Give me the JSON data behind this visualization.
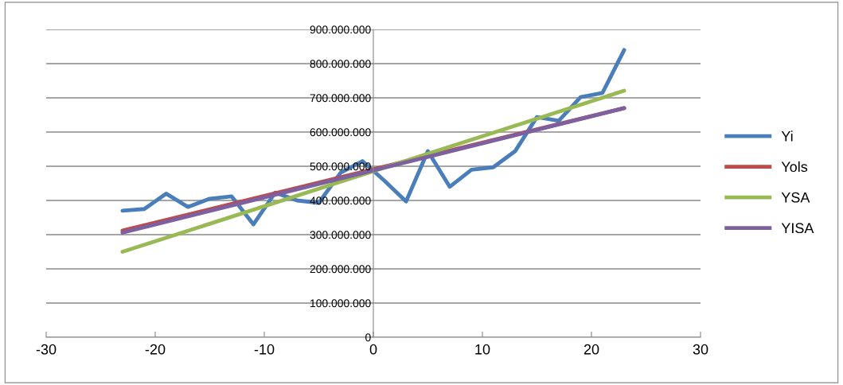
{
  "chart_data": {
    "type": "line",
    "x": [
      -23,
      -21,
      -19,
      -17,
      -15,
      -13,
      -11,
      -9,
      -7,
      -5,
      -3,
      -1,
      1,
      3,
      5,
      7,
      9,
      11,
      13,
      15,
      17,
      19,
      21,
      23
    ],
    "series": [
      {
        "name": "Yi",
        "color": "#4a7ebb",
        "values": [
          370000000,
          375000000,
          420000000,
          381000000,
          405000000,
          412000000,
          330000000,
          423000000,
          400000000,
          393000000,
          481000000,
          515000000,
          458000000,
          397000000,
          544000000,
          440000000,
          490000000,
          497000000,
          544000000,
          644000000,
          633000000,
          702000000,
          714000000,
          840000000
        ]
      },
      {
        "name": "Yols",
        "color": "#be4b48",
        "values": [
          312000000,
          null,
          null,
          null,
          null,
          null,
          null,
          null,
          null,
          null,
          null,
          null,
          null,
          null,
          null,
          null,
          null,
          null,
          null,
          null,
          null,
          null,
          null,
          670000000
        ]
      },
      {
        "name": "YSA",
        "color": "#98b954",
        "values": [
          250000000,
          null,
          null,
          null,
          null,
          null,
          null,
          null,
          null,
          null,
          null,
          null,
          null,
          null,
          null,
          null,
          null,
          null,
          null,
          null,
          null,
          null,
          null,
          721000000
        ]
      },
      {
        "name": "YISA",
        "color": "#7d60a0",
        "values": [
          306000000,
          null,
          null,
          null,
          null,
          null,
          null,
          null,
          null,
          null,
          null,
          null,
          null,
          null,
          null,
          null,
          null,
          null,
          null,
          null,
          null,
          null,
          null,
          670000000
        ]
      }
    ],
    "xlim": [
      -30,
      30
    ],
    "xticks": [
      -30,
      -20,
      -10,
      0,
      10,
      20,
      30
    ],
    "ylim": [
      0,
      900000000
    ],
    "yticks": [
      {
        "value": 0,
        "label": "0"
      },
      {
        "value": 100000000,
        "label": "100.000.000"
      },
      {
        "value": 200000000,
        "label": "200.000.000"
      },
      {
        "value": 300000000,
        "label": "300.000.000"
      },
      {
        "value": 400000000,
        "label": "400.000.000"
      },
      {
        "value": 500000000,
        "label": "500.000.000"
      },
      {
        "value": 600000000,
        "label": "600.000.000"
      },
      {
        "value": 700000000,
        "label": "700.000.000"
      },
      {
        "value": 800000000,
        "label": "800.000.000"
      },
      {
        "value": 900000000,
        "label": "900.000.000"
      }
    ],
    "grid": "y",
    "legend": "right",
    "marker": "none",
    "line_style": "solid"
  }
}
